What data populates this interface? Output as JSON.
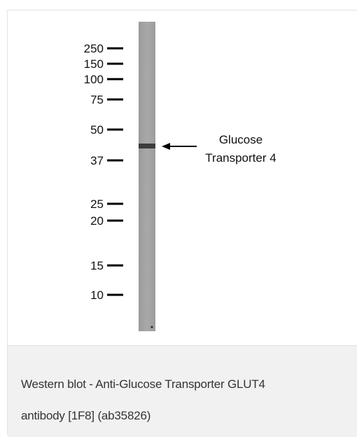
{
  "figure": {
    "markers": [
      "250",
      "150",
      "100",
      "75",
      "50",
      "37",
      "25",
      "20",
      "15",
      "10"
    ],
    "band_label": [
      "Glucose",
      "Transporter 4"
    ]
  },
  "caption": {
    "lines": [
      "Western blot - Anti-Glucose Transporter GLUT4",
      "antibody [1F8] (ab35826)"
    ]
  }
}
